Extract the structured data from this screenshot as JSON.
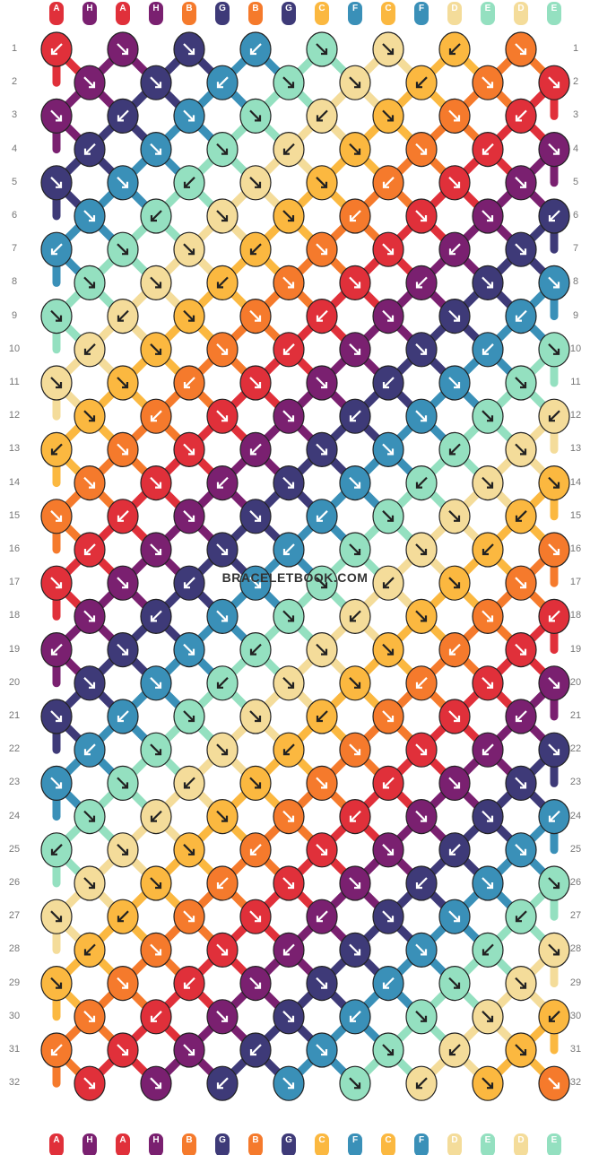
{
  "site": {
    "watermark": "BRACELETBOOK.COM"
  },
  "pattern": {
    "strand_labels_top": [
      "A",
      "H",
      "A",
      "H",
      "B",
      "G",
      "B",
      "G",
      "C",
      "F",
      "C",
      "F",
      "D",
      "E",
      "D",
      "E"
    ],
    "strand_labels_bottom": [
      "A",
      "H",
      "A",
      "H",
      "B",
      "G",
      "B",
      "G",
      "C",
      "F",
      "C",
      "F",
      "D",
      "E",
      "D",
      "E"
    ],
    "row_numbers": [
      "1",
      "2",
      "3",
      "4",
      "5",
      "6",
      "7",
      "8",
      "9",
      "10",
      "11",
      "12",
      "13",
      "14",
      "15",
      "16",
      "17",
      "18",
      "19",
      "20",
      "21",
      "22",
      "23",
      "24",
      "25",
      "26",
      "27",
      "28",
      "29",
      "30",
      "31",
      "32"
    ],
    "colors": {
      "A": "#e0303a",
      "B": "#f57a2c",
      "C": "#fbb840",
      "D": "#f4dc9a",
      "E": "#94e0c0",
      "F": "#3a90b8",
      "G": "#3e3a78",
      "H": "#7a2070"
    }
  }
}
